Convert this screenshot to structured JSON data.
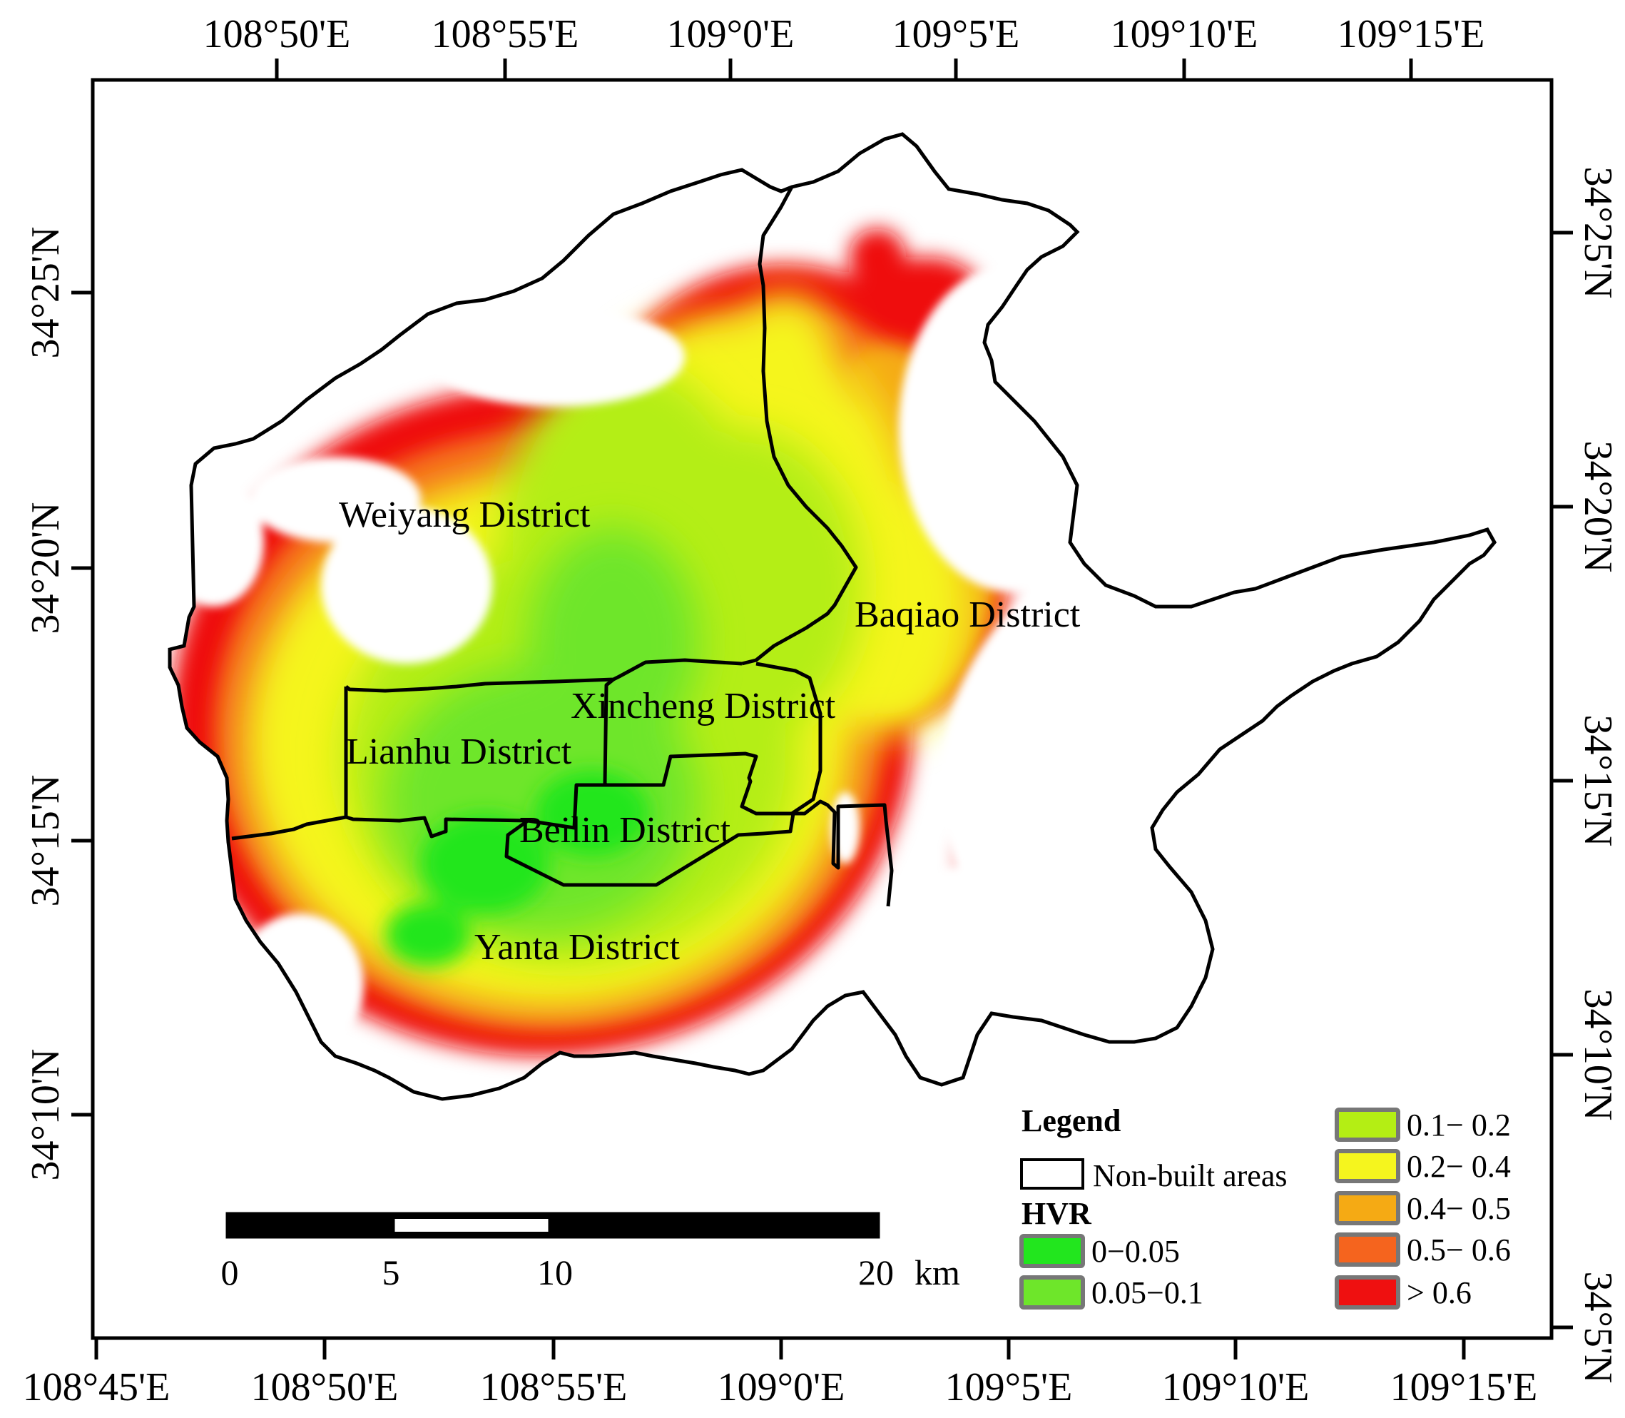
{
  "map": {
    "top_lon_labels": [
      "108°50'E",
      "108°55'E",
      "109°0'E",
      "109°5'E",
      "109°10'E",
      "109°15'E"
    ],
    "bottom_lon_labels": [
      "108°45'E",
      "108°50'E",
      "108°55'E",
      "109°0'E",
      "109°5'E",
      "109°10'E",
      "109°15'E"
    ],
    "left_lat_labels": [
      "34°25'N",
      "34°20'N",
      "34°15'N",
      "34°10'N"
    ],
    "right_lat_labels": [
      "34°25'N",
      "34°20'N",
      "34°15'N",
      "34°10'N",
      "34°5'N"
    ],
    "districts": [
      "Weiyang District",
      "Baqiao District",
      "Xincheng District",
      "Lianhu District",
      "Beilin District",
      "Yanta District"
    ]
  },
  "scale_bar": {
    "labels": [
      "0",
      "5",
      "10",
      "20"
    ],
    "unit": "km"
  },
  "legend": {
    "title": "Legend",
    "non_built_label": "Non-built areas",
    "hvr_title": "HVR",
    "classes": [
      {
        "label": "0−0.05",
        "color": "#22e61e"
      },
      {
        "label": "0.05−0.1",
        "color": "#6ee62a"
      },
      {
        "label": "0.1− 0.2",
        "color": "#b4ee14"
      },
      {
        "label": "0.2− 0.4",
        "color": "#f5f51e"
      },
      {
        "label": "0.4− 0.5",
        "color": "#f5aa14"
      },
      {
        "label": "0.5− 0.6",
        "color": "#f5641e"
      },
      {
        "label": "> 0.6",
        "color": "#ef1010"
      }
    ]
  }
}
